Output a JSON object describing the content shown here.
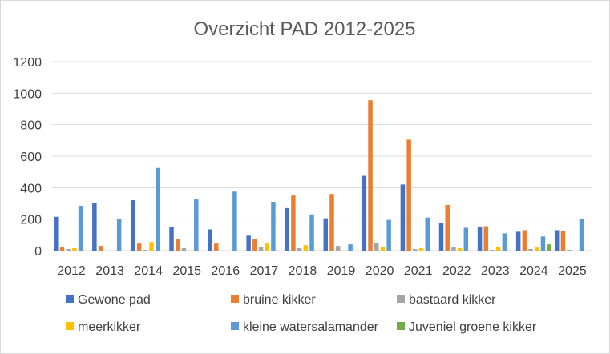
{
  "chart_data": {
    "type": "bar",
    "title": "Overzicht PAD 2012-2025",
    "xlabel": "",
    "ylabel": "",
    "ylim": [
      0,
      1200
    ],
    "yticks": [
      0,
      200,
      400,
      600,
      800,
      1000,
      1200
    ],
    "grid": true,
    "legend_position": "bottom",
    "categories": [
      "2012",
      "2013",
      "2014",
      "2015",
      "2016",
      "2017",
      "2018",
      "2019",
      "2020",
      "2021",
      "2022",
      "2023",
      "2024",
      "2025"
    ],
    "series": [
      {
        "name": "Gewone pad",
        "color": "#4472C4",
        "values": [
          215,
          300,
          320,
          150,
          135,
          95,
          270,
          205,
          475,
          420,
          175,
          150,
          120,
          130
        ]
      },
      {
        "name": "bruine kikker",
        "color": "#ED7D31",
        "values": [
          20,
          30,
          45,
          75,
          45,
          75,
          350,
          360,
          955,
          705,
          290,
          155,
          130,
          125
        ]
      },
      {
        "name": "bastaard kikker",
        "color": "#A5A5A5",
        "values": [
          10,
          0,
          5,
          15,
          0,
          25,
          15,
          30,
          50,
          10,
          20,
          5,
          10,
          5
        ]
      },
      {
        "name": "meerkikker",
        "color": "#FFC000",
        "values": [
          15,
          0,
          55,
          0,
          0,
          45,
          35,
          0,
          25,
          15,
          15,
          25,
          20,
          0
        ]
      },
      {
        "name": "kleine watersalamander",
        "color": "#5B9BD5",
        "values": [
          285,
          200,
          525,
          325,
          375,
          310,
          230,
          40,
          195,
          210,
          145,
          110,
          90,
          200
        ]
      },
      {
        "name": "Juveniel groene kikker",
        "color": "#70AD47",
        "values": [
          0,
          0,
          0,
          0,
          0,
          0,
          0,
          0,
          0,
          0,
          0,
          0,
          40,
          0
        ]
      }
    ]
  }
}
